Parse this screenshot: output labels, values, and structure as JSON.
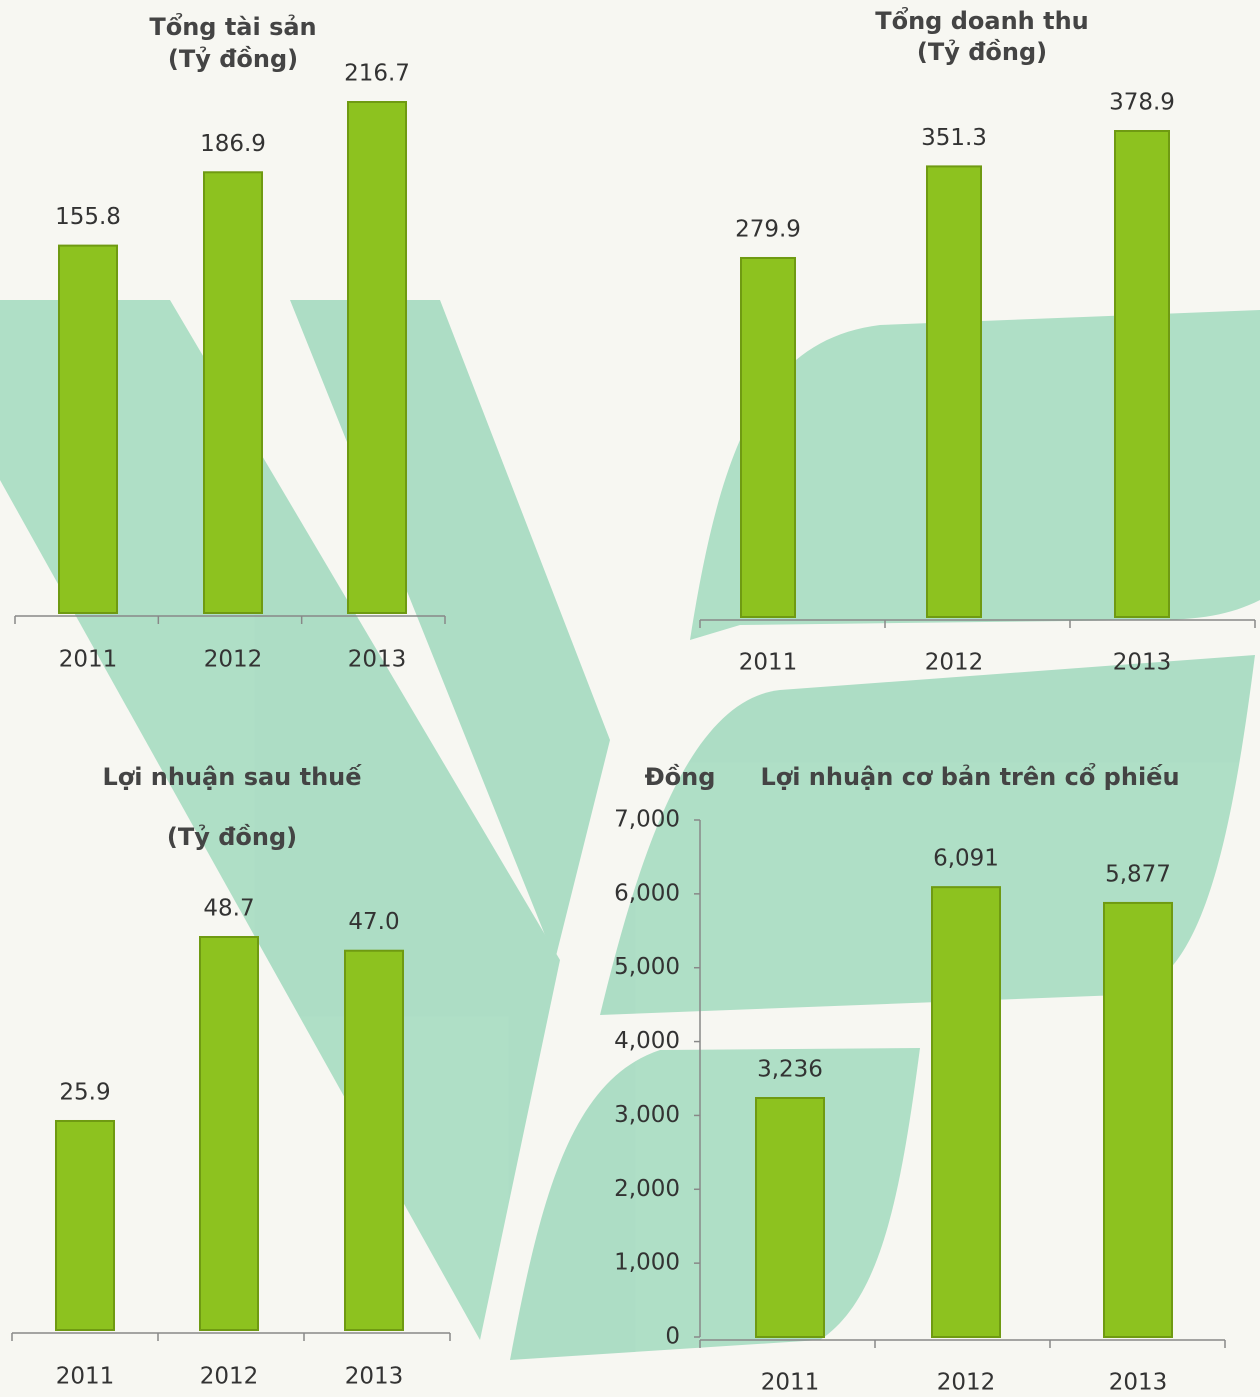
{
  "chart_data": [
    {
      "type": "bar",
      "title": "Tổng tài sản",
      "subtitle": "(Tỷ đồng)",
      "categories": [
        "2011",
        "2012",
        "2013"
      ],
      "values": [
        155.8,
        186.9,
        216.7
      ],
      "color": "#8dc21f"
    },
    {
      "type": "bar",
      "title": "Tổng doanh thu",
      "subtitle": "(Tỷ đồng)",
      "categories": [
        "2011",
        "2012",
        "2013"
      ],
      "values": [
        279.9,
        351.3,
        378.9
      ],
      "color": "#8dc21f"
    },
    {
      "type": "bar",
      "title": "Lợi nhuận sau thuế",
      "subtitle": "(Tỷ đồng)",
      "categories": [
        "2011",
        "2012",
        "2013"
      ],
      "values": [
        25.9,
        48.7,
        47.0
      ],
      "value_labels": [
        "25.9",
        "48.7",
        "47.0"
      ],
      "color": "#8dc21f"
    },
    {
      "type": "bar",
      "title": "Lợi nhuận cơ bản trên cổ phiếu",
      "y_label": "Đồng",
      "categories": [
        "2011",
        "2012",
        "2013"
      ],
      "values": [
        3236,
        6091,
        5877
      ],
      "value_labels": [
        "3,236",
        "6,091",
        "5,877"
      ],
      "color": "#8dc21f",
      "ylim": [
        0,
        7000
      ],
      "yticks": [
        0,
        {
          "value": 1000,
          "label": "1,000"
        },
        {
          "value": 2000,
          "label": "2,000"
        },
        {
          "value": 3000,
          "label": "3,000"
        },
        {
          "value": 4000,
          "label": "4,000"
        },
        {
          "value": 5000,
          "label": "5,000"
        },
        {
          "value": 6000,
          "label": "6,000"
        },
        {
          "value": 7000,
          "label": "7,000"
        }
      ]
    }
  ]
}
